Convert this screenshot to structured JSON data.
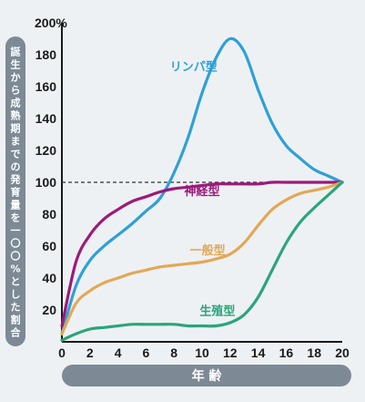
{
  "chart_data": {
    "type": "line",
    "title": "",
    "xlabel": "年 齢",
    "ylabel": "誕生から成熟期までの発育量を一〇〇%とした割合",
    "xlim": [
      0,
      20
    ],
    "ylim": [
      0,
      200
    ],
    "x_ticks": [
      "0",
      "2",
      "4",
      "6",
      "8",
      "10",
      "12",
      "14",
      "16",
      "18",
      "20"
    ],
    "y_ticks": [
      "",
      "20",
      "40",
      "60",
      "80",
      "100",
      "120",
      "140",
      "160",
      "180",
      "200%"
    ],
    "reference_line": {
      "y": 100,
      "style": "dashed"
    },
    "grid": false,
    "series": [
      {
        "name": "リンパ型",
        "color": "#2ea0d8",
        "x": [
          0,
          1,
          2,
          3,
          4,
          5,
          6,
          7,
          8,
          9,
          10,
          11,
          12,
          13,
          14,
          15,
          16,
          17,
          18,
          19,
          20
        ],
        "values": [
          5,
          35,
          51,
          60,
          67,
          74,
          82,
          90,
          106,
          128,
          156,
          178,
          190,
          182,
          158,
          137,
          123,
          115,
          108,
          104,
          100
        ]
      },
      {
        "name": "神経型",
        "color": "#9c1a7a",
        "x": [
          0,
          1,
          2,
          3,
          4,
          5,
          6,
          7,
          8,
          9,
          10,
          11,
          12,
          13,
          14,
          15,
          16,
          17,
          18,
          19,
          20
        ],
        "values": [
          10,
          50,
          67,
          77,
          83,
          88,
          91,
          94,
          96,
          97,
          98,
          99,
          99,
          99,
          99,
          100,
          100,
          100,
          100,
          100,
          100
        ]
      },
      {
        "name": "一般型",
        "color": "#e3a855",
        "x": [
          0,
          1,
          2,
          3,
          4,
          5,
          6,
          7,
          8,
          9,
          10,
          11,
          12,
          13,
          14,
          15,
          16,
          17,
          18,
          19,
          20
        ],
        "values": [
          5,
          24,
          32,
          37,
          40,
          43,
          45,
          47,
          48,
          49,
          50,
          52,
          55,
          62,
          73,
          83,
          89,
          93,
          95,
          97,
          100
        ]
      },
      {
        "name": "生殖型",
        "color": "#2aa57a",
        "x": [
          0,
          1,
          2,
          3,
          4,
          5,
          6,
          7,
          8,
          9,
          10,
          11,
          12,
          13,
          14,
          15,
          16,
          17,
          18,
          19,
          20
        ],
        "values": [
          1,
          5,
          8,
          9,
          10,
          11,
          11,
          11,
          11,
          10,
          10,
          10,
          12,
          17,
          28,
          45,
          62,
          75,
          84,
          92,
          100
        ]
      }
    ],
    "series_label_positions": [
      "near-peak-left",
      "right-of-curve-at-10",
      "under-curve-at-10",
      "above-curve-at-11"
    ]
  }
}
